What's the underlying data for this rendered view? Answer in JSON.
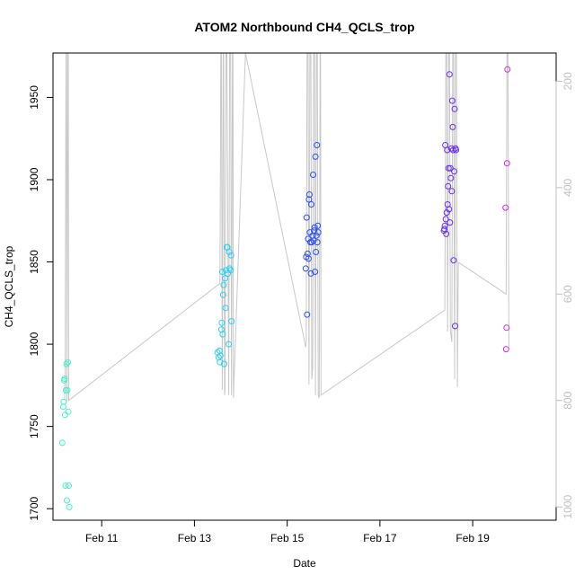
{
  "chart_data": {
    "type": "scatter",
    "title": "ATOM2 Northbound CH4_QCLS_trop",
    "xlabel": "Date",
    "ylabel": "CH4_QCLS_trop",
    "x_unit": "day of February",
    "xlim": [
      9.95,
      20.8
    ],
    "ylim": [
      1693,
      1977
    ],
    "x_ticks": [
      11,
      13,
      15,
      17,
      19
    ],
    "x_tick_labels": [
      "Feb 11",
      "Feb 13",
      "Feb 15",
      "Feb 17",
      "Feb 19"
    ],
    "y_ticks": [
      1700,
      1750,
      1800,
      1850,
      1900,
      1950
    ],
    "y_tick_labels": [
      "1700",
      "1750",
      "1800",
      "1850",
      "1900",
      "1950"
    ],
    "y2_label": "",
    "y2_ticks": [
      200,
      400,
      600,
      800,
      1000
    ],
    "y2_tick_labels": [
      "200",
      "400",
      "600",
      "800",
      "1000"
    ],
    "y2_lim": [
      1025,
      147
    ],
    "y2_color": "#bfbfbf",
    "grid": false,
    "legend": "none",
    "profile_color": "#c8c8c8",
    "pressure_profile": [
      [
        10.2,
        800
      ],
      [
        10.21,
        770
      ],
      [
        10.23,
        140
      ],
      [
        10.24,
        140
      ],
      [
        10.25,
        800
      ],
      [
        10.27,
        140
      ],
      [
        10.28,
        140
      ],
      [
        10.29,
        800
      ],
      [
        13.55,
        580
      ],
      [
        13.57,
        140
      ],
      [
        13.58,
        140
      ],
      [
        13.6,
        780
      ],
      [
        13.62,
        140
      ],
      [
        13.63,
        140
      ],
      [
        13.65,
        790
      ],
      [
        13.66,
        780
      ],
      [
        13.68,
        140
      ],
      [
        13.7,
        140
      ],
      [
        13.74,
        790
      ],
      [
        13.76,
        140
      ],
      [
        13.78,
        140
      ],
      [
        13.8,
        790
      ],
      [
        13.82,
        140
      ],
      [
        13.83,
        140
      ],
      [
        13.84,
        795
      ],
      [
        14.1,
        147
      ],
      [
        15.4,
        700
      ],
      [
        15.41,
        690
      ],
      [
        15.43,
        140
      ],
      [
        15.45,
        140
      ],
      [
        15.47,
        770
      ],
      [
        15.49,
        140
      ],
      [
        15.51,
        140
      ],
      [
        15.53,
        760
      ],
      [
        15.55,
        740
      ],
      [
        15.57,
        140
      ],
      [
        15.59,
        140
      ],
      [
        15.61,
        790
      ],
      [
        15.63,
        140
      ],
      [
        15.65,
        140
      ],
      [
        15.67,
        790
      ],
      [
        15.69,
        795
      ],
      [
        15.71,
        140
      ],
      [
        15.72,
        140
      ],
      [
        15.73,
        790
      ],
      [
        18.4,
        630
      ],
      [
        18.42,
        140
      ],
      [
        18.44,
        140
      ],
      [
        18.46,
        670
      ],
      [
        18.48,
        140
      ],
      [
        18.5,
        140
      ],
      [
        18.52,
        670
      ],
      [
        18.55,
        690
      ],
      [
        18.57,
        140
      ],
      [
        18.59,
        140
      ],
      [
        18.61,
        760
      ],
      [
        18.63,
        140
      ],
      [
        18.65,
        140
      ],
      [
        18.67,
        775
      ],
      [
        18.69,
        540
      ],
      [
        19.72,
        600
      ],
      [
        19.74,
        140
      ],
      [
        19.76,
        140
      ],
      [
        19.78,
        700
      ]
    ],
    "series": [
      {
        "color": "#3ff5c8",
        "points": [
          [
            10.15,
            1740
          ],
          [
            10.17,
            1762
          ],
          [
            10.18,
            1765
          ],
          [
            10.19,
            1778
          ],
          [
            10.2,
            1779
          ],
          [
            10.21,
            1757
          ],
          [
            10.22,
            1714
          ],
          [
            10.23,
            1772
          ],
          [
            10.24,
            1788
          ],
          [
            10.25,
            1705
          ],
          [
            10.26,
            1772
          ],
          [
            10.27,
            1789
          ],
          [
            10.28,
            1759
          ],
          [
            10.29,
            1714
          ],
          [
            10.3,
            1701
          ]
        ]
      },
      {
        "color": "#2ad0f5",
        "points": [
          [
            13.5,
            1795
          ],
          [
            13.52,
            1792
          ],
          [
            13.54,
            1796
          ],
          [
            13.55,
            1789
          ],
          [
            13.56,
            1793
          ],
          [
            13.58,
            1809
          ],
          [
            13.59,
            1813
          ],
          [
            13.6,
            1844
          ],
          [
            13.61,
            1806
          ],
          [
            13.62,
            1830
          ],
          [
            13.63,
            1836
          ],
          [
            13.64,
            1788
          ],
          [
            13.66,
            1840
          ],
          [
            13.67,
            1822
          ],
          [
            13.68,
            1845
          ],
          [
            13.7,
            1859
          ],
          [
            13.71,
            1859
          ],
          [
            13.72,
            1843
          ],
          [
            13.74,
            1800
          ],
          [
            13.75,
            1856
          ],
          [
            13.76,
            1846
          ],
          [
            13.78,
            1845
          ],
          [
            13.79,
            1854
          ],
          [
            13.8,
            1814
          ]
        ]
      },
      {
        "color": "#2d50f0",
        "points": [
          [
            15.4,
            1846
          ],
          [
            15.41,
            1853
          ],
          [
            15.42,
            1877
          ],
          [
            15.43,
            1818
          ],
          [
            15.44,
            1855
          ],
          [
            15.45,
            1864
          ],
          [
            15.46,
            1852
          ],
          [
            15.47,
            1888
          ],
          [
            15.48,
            1891
          ],
          [
            15.49,
            1868
          ],
          [
            15.5,
            1862
          ],
          [
            15.51,
            1843
          ],
          [
            15.52,
            1885
          ],
          [
            15.53,
            1862
          ],
          [
            15.55,
            1866
          ],
          [
            15.56,
            1903
          ],
          [
            15.57,
            1863
          ],
          [
            15.58,
            1869
          ],
          [
            15.59,
            1871
          ],
          [
            15.6,
            1844
          ],
          [
            15.61,
            1914
          ],
          [
            15.62,
            1856
          ],
          [
            15.63,
            1866
          ],
          [
            15.64,
            1921
          ],
          [
            15.65,
            1862
          ],
          [
            15.66,
            1872
          ],
          [
            15.67,
            1868
          ]
        ]
      },
      {
        "color": "#6a2cf0",
        "points": [
          [
            18.38,
            1869
          ],
          [
            18.39,
            1870
          ],
          [
            18.4,
            1872
          ],
          [
            18.41,
            1921
          ],
          [
            18.42,
            1876
          ],
          [
            18.43,
            1867
          ],
          [
            18.44,
            1880
          ],
          [
            18.45,
            1918
          ],
          [
            18.46,
            1885
          ],
          [
            18.47,
            1896
          ],
          [
            18.48,
            1907
          ],
          [
            18.49,
            1882
          ],
          [
            18.5,
            1964
          ],
          [
            18.51,
            1874
          ],
          [
            18.52,
            1907
          ],
          [
            18.53,
            1901
          ],
          [
            18.54,
            1919
          ],
          [
            18.55,
            1893
          ],
          [
            18.56,
            1948
          ],
          [
            18.57,
            1932
          ],
          [
            18.58,
            1918
          ],
          [
            18.59,
            1851
          ],
          [
            18.6,
            1905
          ],
          [
            18.61,
            1943
          ],
          [
            18.62,
            1811
          ],
          [
            18.63,
            1919
          ],
          [
            18.64,
            1918
          ]
        ]
      },
      {
        "color": "#d42ae0",
        "points": [
          [
            19.71,
            1883
          ],
          [
            19.72,
            1797
          ],
          [
            19.73,
            1810
          ],
          [
            19.74,
            1910
          ],
          [
            19.75,
            1967
          ]
        ]
      }
    ]
  }
}
